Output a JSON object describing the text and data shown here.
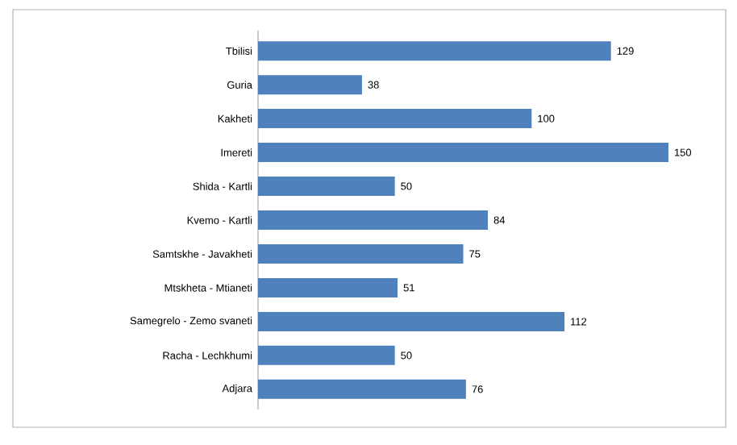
{
  "chart_data": {
    "type": "bar",
    "orientation": "horizontal",
    "categories": [
      "Tbilisi",
      "Guria",
      "Kakheti",
      "Imereti",
      "Shida - Kartli",
      "Kvemo - Kartli",
      "Samtskhe - Javakheti",
      "Mtskheta - Mtianeti",
      "Samegrelo - Zemo svaneti",
      "Racha - Lechkhumi",
      "Adjara"
    ],
    "values": [
      129,
      38,
      100,
      150,
      50,
      84,
      75,
      51,
      112,
      50,
      76
    ],
    "color": "#4f81bd",
    "data_labels": true,
    "tick_labels": "y"
  }
}
